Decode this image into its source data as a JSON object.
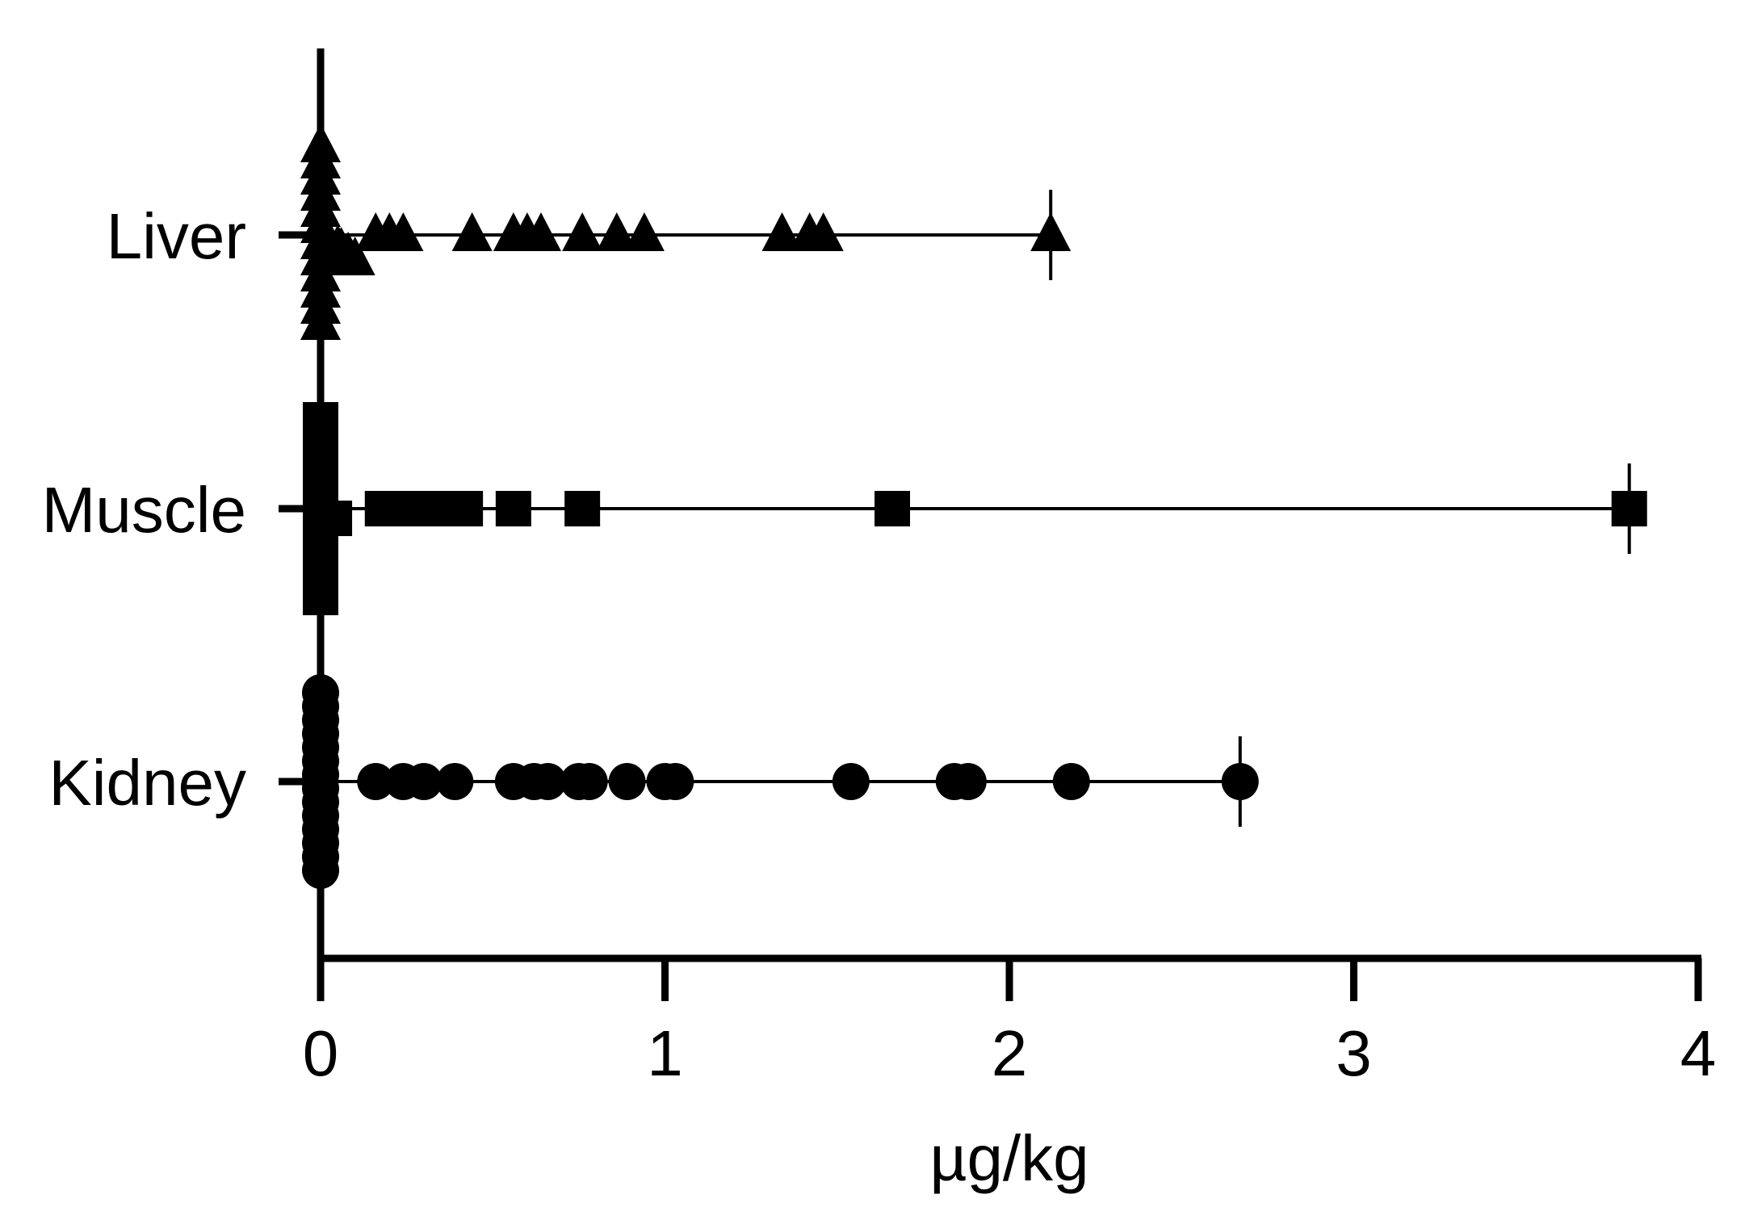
{
  "chart_data": {
    "type": "scatter",
    "title": "",
    "xlabel": "µg/kg",
    "ylabel": "",
    "xlim": [
      0,
      4
    ],
    "x_ticks": [
      0,
      1,
      2,
      3,
      4
    ],
    "x_tick_labels": [
      "0",
      "1",
      "2",
      "3",
      "4"
    ],
    "categories": [
      "Liver",
      "Muscle",
      "Kidney"
    ],
    "grid": false,
    "legend": "none",
    "series": [
      {
        "category": "Liver",
        "marker": "triangle",
        "max_value": 2.12,
        "values": [
          0,
          0,
          0,
          0,
          0,
          0,
          0,
          0,
          0,
          0,
          0,
          0,
          0.02,
          0.05,
          0.06,
          0.08,
          0.1,
          0.16,
          0.2,
          0.24,
          0.44,
          0.56,
          0.6,
          0.64,
          0.76,
          0.86,
          0.94,
          1.34,
          1.42,
          1.46,
          2.12
        ]
      },
      {
        "category": "Muscle",
        "marker": "square",
        "max_value": 3.8,
        "values": [
          0,
          0,
          0,
          0,
          0,
          0,
          0,
          0,
          0,
          0,
          0,
          0,
          0.04,
          0.18,
          0.22,
          0.26,
          0.3,
          0.34,
          0.38,
          0.42,
          0.56,
          0.76,
          1.66,
          3.8
        ]
      },
      {
        "category": "Kidney",
        "marker": "circle",
        "max_value": 2.67,
        "values": [
          0,
          0,
          0,
          0,
          0,
          0,
          0,
          0,
          0,
          0,
          0,
          0,
          0,
          0,
          0.16,
          0.24,
          0.3,
          0.39,
          0.56,
          0.62,
          0.66,
          0.75,
          0.78,
          0.89,
          1.0,
          1.03,
          1.54,
          1.84,
          1.88,
          2.18,
          2.67
        ]
      }
    ]
  }
}
